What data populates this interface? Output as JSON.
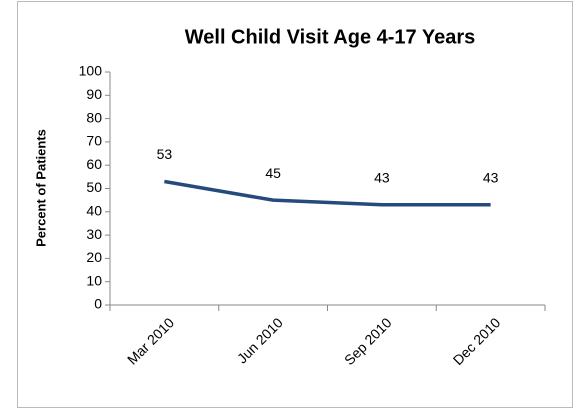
{
  "chart_data": {
    "type": "line",
    "title": "Well Child Visit Age 4-17 Years",
    "y_label": "Percent of Patients",
    "categories": [
      "Mar 2010",
      "Jun 2010",
      "Sep 2010",
      "Dec 2010"
    ],
    "series": [
      {
        "name": "Well Child Visit",
        "color": "#254a7c",
        "values": [
          53,
          45,
          43,
          43
        ]
      }
    ],
    "ylim": [
      0,
      100
    ],
    "yticks": [
      0,
      10,
      20,
      30,
      40,
      50,
      60,
      70,
      80,
      90,
      100
    ],
    "grid": false,
    "data_labels": true
  }
}
